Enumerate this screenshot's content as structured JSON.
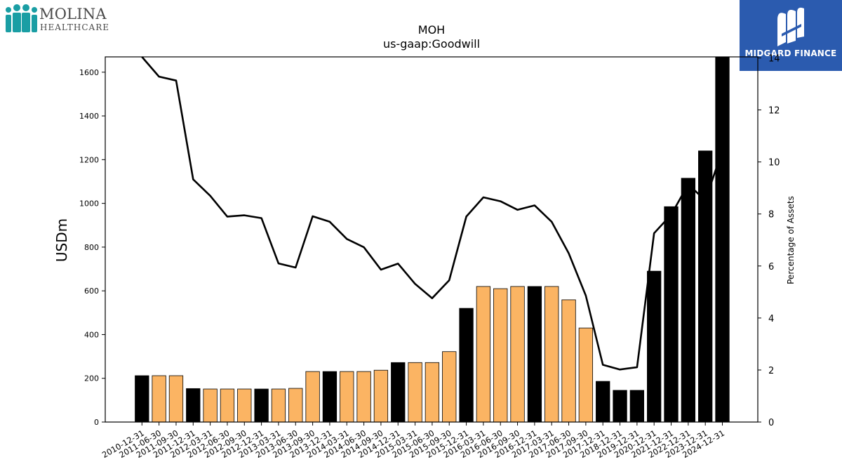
{
  "logos": {
    "left_line1": "MOLINA",
    "left_line2": "HEALTHCARE",
    "left_color": "#1a9ea4",
    "right_text": "MIDGARD FINANCE",
    "right_bg": "#2b5baf"
  },
  "chart_data": {
    "type": "bar",
    "title": "MOH",
    "subtitle": "us-gaap:Goodwill",
    "ylabel": "USDm",
    "y2label": "Percentage of Assets",
    "ylim": [
      0,
      1670
    ],
    "y2lim": [
      0,
      14.04
    ],
    "yticks": [
      0,
      200,
      400,
      600,
      800,
      1000,
      1200,
      1400,
      1600
    ],
    "y2ticks": [
      0,
      2,
      4,
      6,
      8,
      10,
      12,
      14
    ],
    "grid": false,
    "categories": [
      "2010-12-31",
      "2011-06-30",
      "2011-09-30",
      "2011-12-31",
      "2012-03-31",
      "2012-06-30",
      "2012-09-30",
      "2012-12-31",
      "2013-03-31",
      "2013-06-30",
      "2013-09-30",
      "2013-12-31",
      "2014-03-31",
      "2014-06-30",
      "2014-09-30",
      "2014-12-31",
      "2015-03-31",
      "2015-06-30",
      "2015-09-30",
      "2015-12-31",
      "2016-03-31",
      "2016-06-30",
      "2016-09-30",
      "2016-12-31",
      "2017-03-31",
      "2017-06-30",
      "2017-09-30",
      "2017-12-31",
      "2018-12-31",
      "2019-12-31",
      "2020-12-31",
      "2021-12-31",
      "2022-12-31",
      "2023-12-31",
      "2024-12-31"
    ],
    "series": [
      {
        "kind": "bar",
        "values": [
          212,
          212,
          212,
          153,
          151,
          151,
          151,
          151,
          151,
          154,
          231,
          231,
          231,
          231,
          237,
          272,
          272,
          272,
          322,
          520,
          620,
          610,
          620,
          620,
          620,
          559,
          430,
          186,
          145,
          145,
          690,
          985,
          1115,
          1240,
          1670
        ],
        "annual_flags": [
          true,
          false,
          false,
          true,
          false,
          false,
          false,
          true,
          false,
          false,
          false,
          true,
          false,
          false,
          false,
          true,
          false,
          false,
          false,
          true,
          false,
          false,
          false,
          true,
          false,
          false,
          false,
          true,
          true,
          true,
          true,
          true,
          true,
          true,
          true
        ],
        "colors": {
          "annual": "#000000",
          "quarterly": "#fbb463"
        }
      },
      {
        "kind": "line",
        "axis": "right",
        "color": "#000000",
        "values": [
          14.07,
          13.28,
          13.13,
          9.33,
          8.7,
          7.9,
          7.95,
          7.84,
          6.1,
          5.94,
          7.91,
          7.7,
          7.04,
          6.72,
          5.86,
          6.09,
          5.31,
          4.76,
          5.45,
          7.9,
          8.64,
          8.49,
          8.16,
          8.33,
          7.7,
          6.49,
          4.86,
          2.2,
          2.02,
          2.11,
          7.26,
          7.97,
          9.14,
          8.52,
          10.44
        ]
      }
    ]
  }
}
